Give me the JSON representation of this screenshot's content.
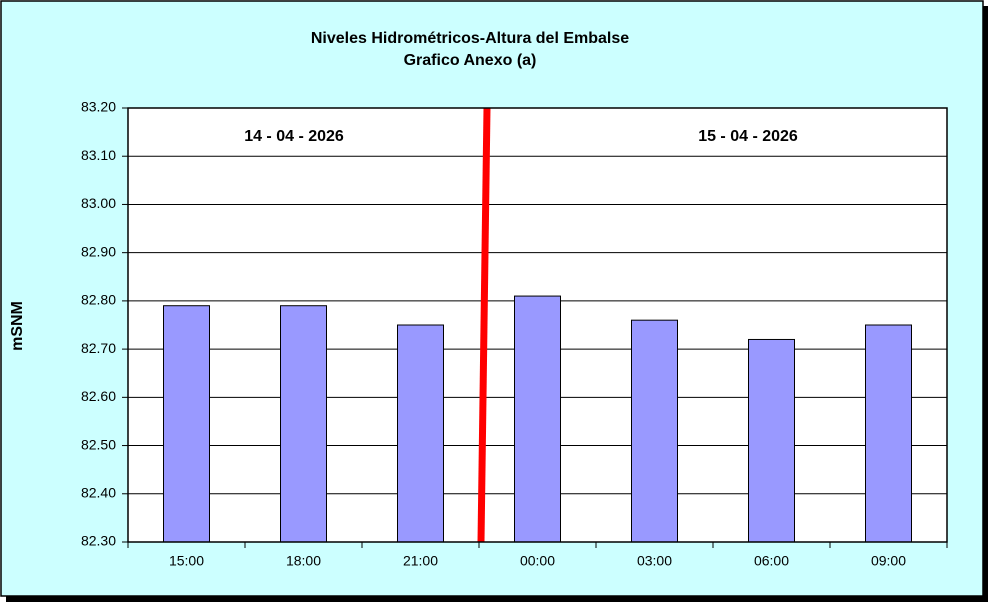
{
  "chart_data": {
    "type": "bar",
    "title": "Niveles Hidrométricos-Altura del Embalse",
    "subtitle": "Grafico Anexo (a)",
    "y_label": "mSNM",
    "annotations": [
      "14 - 04 - 2026",
      "15 - 04 - 2026"
    ],
    "categories": [
      "15:00",
      "18:00",
      "21:00",
      "00:00",
      "03:00",
      "06:00",
      "09:00"
    ],
    "values": [
      82.79,
      82.79,
      82.75,
      82.81,
      82.76,
      82.72,
      82.75
    ],
    "color": "#9999ff",
    "ylim": [
      82.3,
      83.2
    ],
    "yticks": [
      {
        "value": 82.3,
        "label": "82.30"
      },
      {
        "value": 82.4,
        "label": "82.40"
      },
      {
        "value": 82.5,
        "label": "82.50"
      },
      {
        "value": 82.6,
        "label": "82.60"
      },
      {
        "value": 82.7,
        "label": "82.70"
      },
      {
        "value": 82.8,
        "label": "82.80"
      },
      {
        "value": 82.9,
        "label": "82.90"
      },
      {
        "value": 83.0,
        "label": "83.00"
      },
      {
        "value": 83.1,
        "label": "83.10"
      },
      {
        "value": 83.2,
        "label": "83.20"
      }
    ],
    "grid": true
  }
}
